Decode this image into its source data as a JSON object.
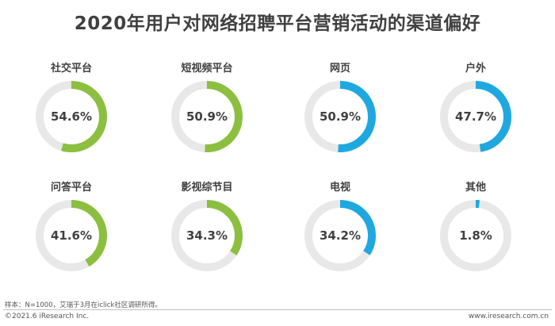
{
  "title": "2020年用户对网络招聘平台营销活动的渠道偏好",
  "chart_data": {
    "type": "donut",
    "title": "2020年用户对网络招聘平台营销活动的渠道偏好",
    "unit": "%",
    "track_color": "#e8e8e8",
    "items": [
      {
        "label": "社交平台",
        "value": 54.6,
        "display": "54.6%",
        "color": "#8cbf3f"
      },
      {
        "label": "短视频平台",
        "value": 50.9,
        "display": "50.9%",
        "color": "#8cbf3f"
      },
      {
        "label": "网页",
        "value": 50.9,
        "display": "50.9%",
        "color": "#1fa8e0"
      },
      {
        "label": "户外",
        "value": 47.7,
        "display": "47.7%",
        "color": "#1fa8e0"
      },
      {
        "label": "问答平台",
        "value": 41.6,
        "display": "41.6%",
        "color": "#8cbf3f"
      },
      {
        "label": "影视综节目",
        "value": 34.3,
        "display": "34.3%",
        "color": "#8cbf3f"
      },
      {
        "label": "电视",
        "value": 34.2,
        "display": "34.2%",
        "color": "#1fa8e0"
      },
      {
        "label": "其他",
        "value": 1.8,
        "display": "1.8%",
        "color": "#1fa8e0"
      }
    ]
  },
  "footer": {
    "note": "样本：N=1000，艾瑞于3月在iclick社区调研所得。",
    "copyright": "©2021.6 iResearch Inc.",
    "website": "www.iresearch.com.cn"
  }
}
